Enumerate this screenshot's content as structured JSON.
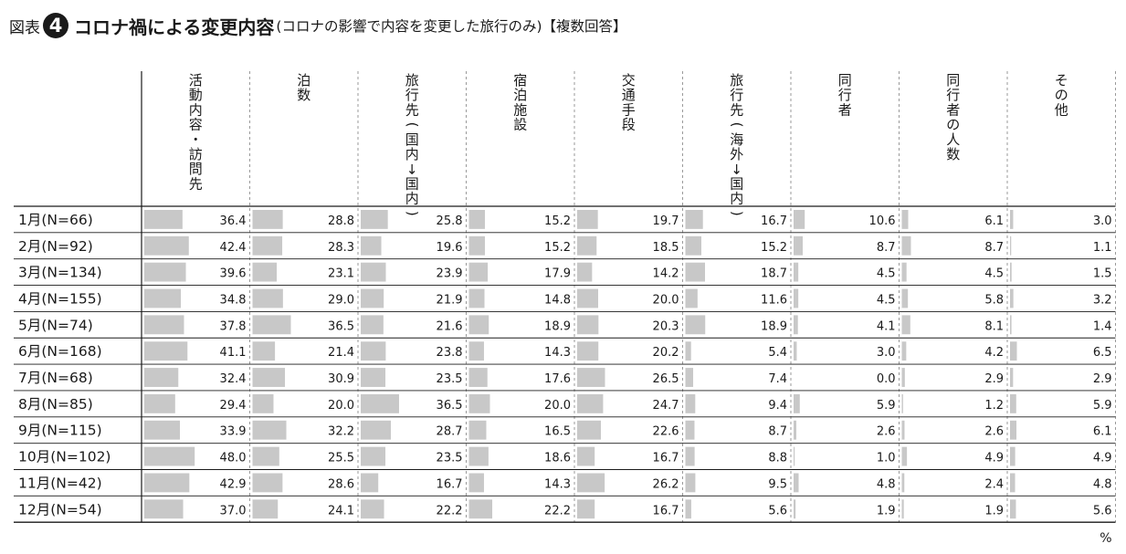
{
  "title": {
    "figure_label": "図表",
    "figure_number": "4",
    "main": "コロナ禍による変更内容",
    "sub": "(コロナの影響で内容を変更した旅行のみ)【複数回答】"
  },
  "unit": "%",
  "colors": {
    "bar": "#c8c8c8",
    "text": "#1a1a1a",
    "grid": "#9a9a9a"
  },
  "chart_data": {
    "type": "table",
    "title": "コロナ禍による変更内容",
    "columns": [
      [
        "活",
        "動",
        "内",
        "容",
        "・",
        "訪",
        "問",
        "先"
      ],
      [
        "泊",
        "数"
      ],
      [
        "旅",
        "行",
        "先",
        "(",
        "国",
        "内",
        "→",
        "国",
        "内",
        ")"
      ],
      [
        "宿",
        "泊",
        "施",
        "設"
      ],
      [
        "交",
        "通",
        "手",
        "段"
      ],
      [
        "旅",
        "行",
        "先",
        "(",
        "海",
        "外",
        "→",
        "国",
        "内",
        ")"
      ],
      [
        "同",
        "行",
        "者"
      ],
      [
        "同",
        "行",
        "者",
        "の",
        "人",
        "数"
      ],
      [
        "そ",
        "の",
        "他"
      ]
    ],
    "rows": [
      {
        "label": "1月(N=66)",
        "values": [
          "36.4",
          "28.8",
          "25.8",
          "15.2",
          "19.7",
          "16.7",
          "10.6",
          "6.1",
          "3.0"
        ]
      },
      {
        "label": "2月(N=92)",
        "values": [
          "42.4",
          "28.3",
          "19.6",
          "15.2",
          "18.5",
          "15.2",
          "8.7",
          "8.7",
          "1.1"
        ]
      },
      {
        "label": "3月(N=134)",
        "values": [
          "39.6",
          "23.1",
          "23.9",
          "17.9",
          "14.2",
          "18.7",
          "4.5",
          "4.5",
          "1.5"
        ]
      },
      {
        "label": "4月(N=155)",
        "values": [
          "34.8",
          "29.0",
          "21.9",
          "14.8",
          "20.0",
          "11.6",
          "4.5",
          "5.8",
          "3.2"
        ]
      },
      {
        "label": "5月(N=74)",
        "values": [
          "37.8",
          "36.5",
          "21.6",
          "18.9",
          "20.3",
          "18.9",
          "4.1",
          "8.1",
          "1.4"
        ]
      },
      {
        "label": "6月(N=168)",
        "values": [
          "41.1",
          "21.4",
          "23.8",
          "14.3",
          "20.2",
          "5.4",
          "3.0",
          "4.2",
          "6.5"
        ]
      },
      {
        "label": "7月(N=68)",
        "values": [
          "32.4",
          "30.9",
          "23.5",
          "17.6",
          "26.5",
          "7.4",
          "0.0",
          "2.9",
          "2.9"
        ]
      },
      {
        "label": "8月(N=85)",
        "values": [
          "29.4",
          "20.0",
          "36.5",
          "20.0",
          "24.7",
          "9.4",
          "5.9",
          "1.2",
          "5.9"
        ]
      },
      {
        "label": "9月(N=115)",
        "values": [
          "33.9",
          "32.2",
          "28.7",
          "16.5",
          "22.6",
          "8.7",
          "2.6",
          "2.6",
          "6.1"
        ]
      },
      {
        "label": "10月(N=102)",
        "values": [
          "48.0",
          "25.5",
          "23.5",
          "18.6",
          "16.7",
          "8.8",
          "1.0",
          "4.9",
          "4.9"
        ]
      },
      {
        "label": "11月(N=42)",
        "values": [
          "42.9",
          "28.6",
          "16.7",
          "14.3",
          "26.2",
          "9.5",
          "4.8",
          "2.4",
          "4.8"
        ]
      },
      {
        "label": "12月(N=54)",
        "values": [
          "37.0",
          "24.1",
          "22.2",
          "22.2",
          "16.7",
          "5.6",
          "1.9",
          "1.9",
          "5.6"
        ]
      }
    ]
  }
}
